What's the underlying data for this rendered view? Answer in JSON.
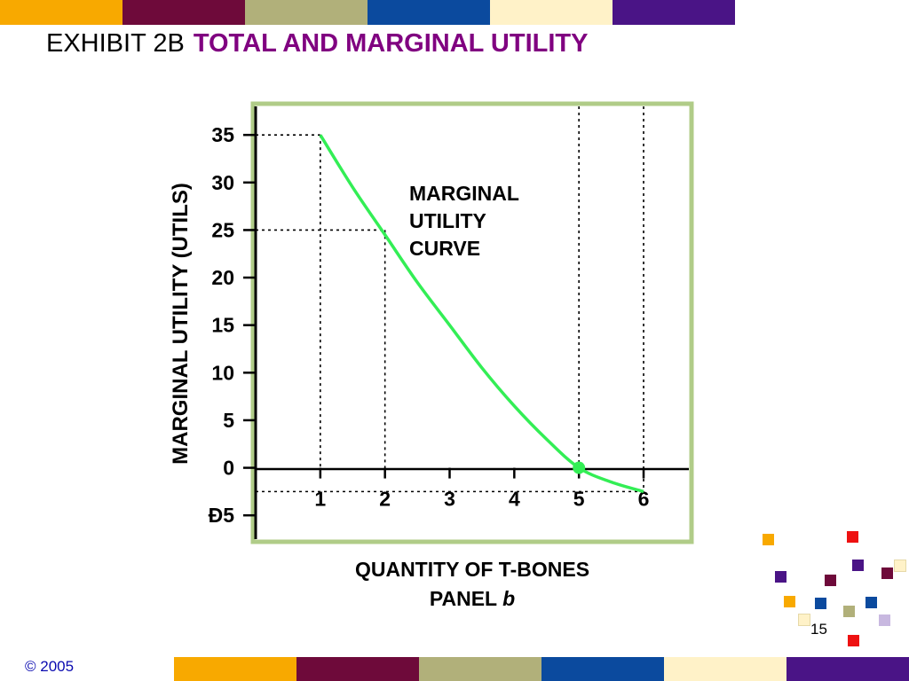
{
  "slide": {
    "exhibit_label": "EXHIBIT 2B",
    "title": "TOTAL AND MARGINAL UTILITY",
    "page_number": "15",
    "copyright": "© 2005"
  },
  "colors": {
    "band": [
      "#f8a900",
      "#6e0a3a",
      "#b1b07a",
      "#0b4a9e",
      "#fff2c8",
      "#4a1486"
    ],
    "curve": "#33ee55",
    "frame": "#b0cc88",
    "title_accent": "#800080"
  },
  "chart_data": {
    "type": "line",
    "title": "",
    "xlabel": "QUANTITY OF T-BONES",
    "xlabel_line2_prefix": "PANEL ",
    "xlabel_line2_italic": "b",
    "ylabel": "MARGINAL UTILITY (UTILS)",
    "annotation": [
      "MARGINAL",
      "UTILITY",
      "CURVE"
    ],
    "x_ticks": [
      "1",
      "2",
      "3",
      "4",
      "5",
      "6"
    ],
    "y_ticks": [
      {
        "value": 35,
        "label": "35"
      },
      {
        "value": 30,
        "label": "30"
      },
      {
        "value": 25,
        "label": "25"
      },
      {
        "value": 20,
        "label": "20"
      },
      {
        "value": 15,
        "label": "15"
      },
      {
        "value": 10,
        "label": "10"
      },
      {
        "value": 5,
        "label": "5"
      },
      {
        "value": 0,
        "label": "0"
      },
      {
        "value": -5,
        "label": "Ð5"
      }
    ],
    "xlim": [
      0,
      6.7
    ],
    "ylim": [
      -7.5,
      38
    ],
    "series": [
      {
        "points": [
          {
            "x": 1,
            "y": 35
          },
          {
            "x": 1.5,
            "y": 29.5
          },
          {
            "x": 2,
            "y": 24.5
          },
          {
            "x": 2.5,
            "y": 19.5
          },
          {
            "x": 3,
            "y": 15
          },
          {
            "x": 3.5,
            "y": 10.5
          },
          {
            "x": 4,
            "y": 6.5
          },
          {
            "x": 4.5,
            "y": 3
          },
          {
            "x": 5,
            "y": 0
          },
          {
            "x": 5.5,
            "y": -1.5
          },
          {
            "x": 6,
            "y": -2.5
          }
        ]
      }
    ],
    "highlight_point": {
      "x": 5,
      "y": 0
    },
    "reference_lines": [
      {
        "x": 1,
        "y": 35
      },
      {
        "x": 2,
        "y": 25
      },
      {
        "x": 5,
        "y": 0
      },
      {
        "x": 6,
        "y": -2.5
      }
    ],
    "grid": false,
    "legend": "none"
  }
}
